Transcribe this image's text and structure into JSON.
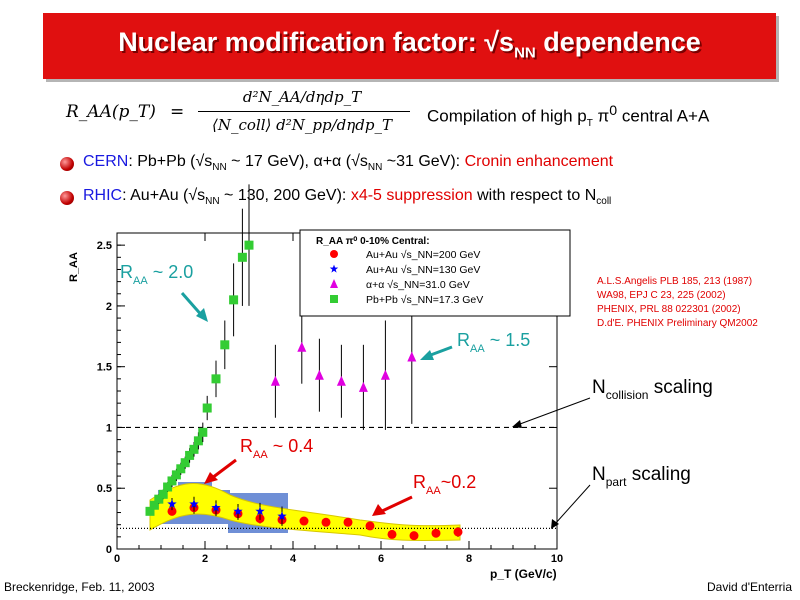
{
  "slide": {
    "title_main": "Nuclear modification factor: √s",
    "title_sub": "NN",
    "title_tail": " dependence",
    "formula": {
      "lhs": "R_AA(p_T)",
      "eq": "=",
      "numerator": "d²N_AA/dηdp_T",
      "denominator": "⟨N_coll⟩ d²N_pp/dηdp_T"
    },
    "compilation_a": "Compilation of high p",
    "compilation_sub": "T",
    "compilation_b": " π",
    "compilation_sup": "0",
    "compilation_c": " central A+A",
    "bullet1": {
      "lab": "CERN",
      "t1": ": Pb+Pb (√s",
      "s1": "NN",
      "t2": " ~ 17 GeV), α+α (√s",
      "s2": "NN",
      "t3": " ~31 GeV): ",
      "hl": "Cronin enhancement"
    },
    "bullet2": {
      "lab": "RHIC",
      "t1": ": Au+Au (√s",
      "s1": "NN",
      "t2": " ~ 130, 200 GeV): ",
      "hl": "x4-5 suppression",
      "t3": " with respect to N",
      "s2": "coll"
    },
    "footer_left": "Breckenridge, Feb. 11, 2003",
    "footer_right": "David d'Enterria",
    "references": [
      "A.L.S.Angelis PLB 185, 213 (1987)",
      "WA98, EPJ C 23, 225 (2002)",
      "PHENIX, PRL 88 022301 (2002)",
      "D.d'E. PHENIX Preliminary QM2002"
    ]
  },
  "annotations": {
    "raa": "R",
    "aa": "AA",
    "a1_val": " ~ 2.0",
    "a2_val": " ~  1.5",
    "a3_val": " ~  0.4",
    "a4_val": "~0.2",
    "ncoll_N": "N",
    "ncoll_sub": "collision",
    "ncoll_tail": " scaling",
    "npart_N": "N",
    "npart_sub": "part",
    "npart_tail": " scaling"
  },
  "colors": {
    "banner": "#e01010",
    "accent_blue": "#1a1ae0",
    "highlight_red": "#e00000",
    "band_yellow": "#ffff00",
    "band_blue": "#6f8fd6"
  },
  "chart_data": {
    "type": "scatter",
    "xlabel": "p_T (GeV/c)",
    "ylabel": "R_AA",
    "xlim": [
      0,
      10
    ],
    "ylim": [
      0,
      2.6
    ],
    "xticks": [
      "0",
      "2",
      "4",
      "6",
      "8",
      "10"
    ],
    "yticks": [
      "0",
      "0.5",
      "1",
      "1.5",
      "2",
      "2.5"
    ],
    "legend": {
      "header": "R_AA π⁰ 0-10% Central:",
      "entries": [
        {
          "label": "Au+Au √s_NN=200 GeV",
          "marker": "circle",
          "color": "#ff0000"
        },
        {
          "label": "Au+Au √s_NN=130 GeV",
          "marker": "star",
          "color": "#0000ff"
        },
        {
          "label": "α+α √s_NN=31.0 GeV",
          "marker": "triangle",
          "color": "#e000e0"
        },
        {
          "label": "Pb+Pb √s_NN=17.3 GeV",
          "marker": "square",
          "color": "#33cc33"
        }
      ]
    },
    "reference_lines": [
      {
        "name": "N_collision scaling",
        "y": 1.0,
        "style": "dashed"
      },
      {
        "name": "N_part scaling",
        "y": 0.17,
        "style": "dotted"
      }
    ],
    "series": [
      {
        "name": "Au+Au √s_NN=200 GeV",
        "marker": "circle",
        "color": "#ff0000",
        "x": [
          1.25,
          1.75,
          2.25,
          2.75,
          3.25,
          3.75,
          4.25,
          4.75,
          5.25,
          5.75,
          6.25,
          6.75,
          7.25,
          7.75
        ],
        "y": [
          0.31,
          0.34,
          0.32,
          0.29,
          0.25,
          0.24,
          0.23,
          0.22,
          0.22,
          0.19,
          0.12,
          0.11,
          0.13,
          0.14
        ],
        "yerr": [
          0.03,
          0.05,
          0.05,
          0.05,
          0.04,
          0.04,
          0.03,
          0.03,
          0.03,
          0.03,
          0.03,
          0.03,
          0.03,
          0.04
        ]
      },
      {
        "name": "Au+Au √s_NN=130 GeV",
        "marker": "star",
        "color": "#0000ff",
        "x": [
          1.25,
          1.75,
          2.25,
          2.75,
          3.25,
          3.75
        ],
        "y": [
          0.37,
          0.37,
          0.34,
          0.31,
          0.31,
          0.27
        ],
        "yerr": [
          0.05,
          0.06,
          0.06,
          0.06,
          0.07,
          0.08
        ]
      },
      {
        "name": "α+α √s_NN=31.0 GeV",
        "marker": "triangle",
        "color": "#e000e0",
        "x": [
          3.6,
          4.2,
          4.6,
          5.1,
          5.6,
          6.1,
          6.7
        ],
        "y": [
          1.38,
          1.66,
          1.43,
          1.38,
          1.33,
          1.43,
          1.58
        ],
        "yerr": [
          0.3,
          0.3,
          0.3,
          0.3,
          0.35,
          0.45,
          0.55
        ]
      },
      {
        "name": "Pb+Pb √s_NN=17.3 GeV",
        "marker": "square",
        "color": "#33cc33",
        "x": [
          0.75,
          0.85,
          0.95,
          1.05,
          1.15,
          1.25,
          1.35,
          1.45,
          1.55,
          1.65,
          1.75,
          1.85,
          1.95,
          2.05,
          2.25,
          2.45,
          2.65,
          2.85,
          3.0
        ],
        "y": [
          0.31,
          0.36,
          0.41,
          0.45,
          0.51,
          0.56,
          0.61,
          0.66,
          0.71,
          0.77,
          0.82,
          0.89,
          0.96,
          1.16,
          1.4,
          1.68,
          2.05,
          2.4,
          2.5
        ],
        "yerr": [
          0.03,
          0.03,
          0.04,
          0.04,
          0.04,
          0.05,
          0.05,
          0.05,
          0.05,
          0.06,
          0.06,
          0.07,
          0.08,
          0.1,
          0.15,
          0.2,
          0.3,
          0.4,
          0.5
        ]
      }
    ]
  }
}
